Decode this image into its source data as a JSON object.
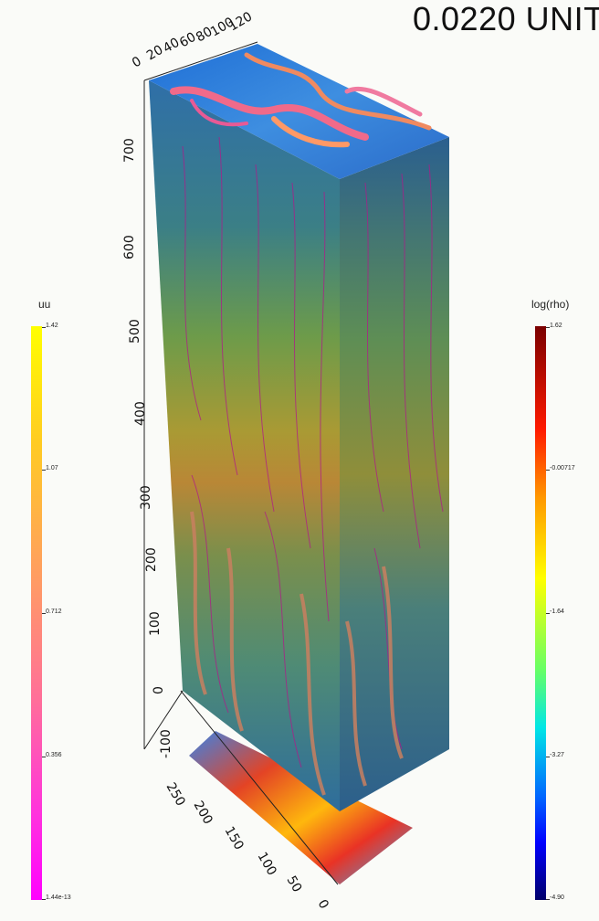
{
  "time_readout": "0.0220  UNIT",
  "colorbar_uu": {
    "title": "uu",
    "ticks": [
      "1.42",
      "1.07",
      "0.712",
      "0.356",
      "1.44e-13"
    ]
  },
  "colorbar_rho": {
    "title": "log(rho)",
    "ticks": [
      "1.62",
      "-0.00717",
      "-1.64",
      "-3.27",
      "-4.90"
    ]
  },
  "axis_top": [
    "0",
    "20",
    "40",
    "60",
    "80",
    "100",
    "120"
  ],
  "axis_vertical": [
    "700",
    "600",
    "500",
    "400",
    "300",
    "200",
    "100",
    "0",
    "-100"
  ],
  "axis_depth": [
    "250",
    "200",
    "150",
    "100",
    "50",
    "0"
  ]
}
